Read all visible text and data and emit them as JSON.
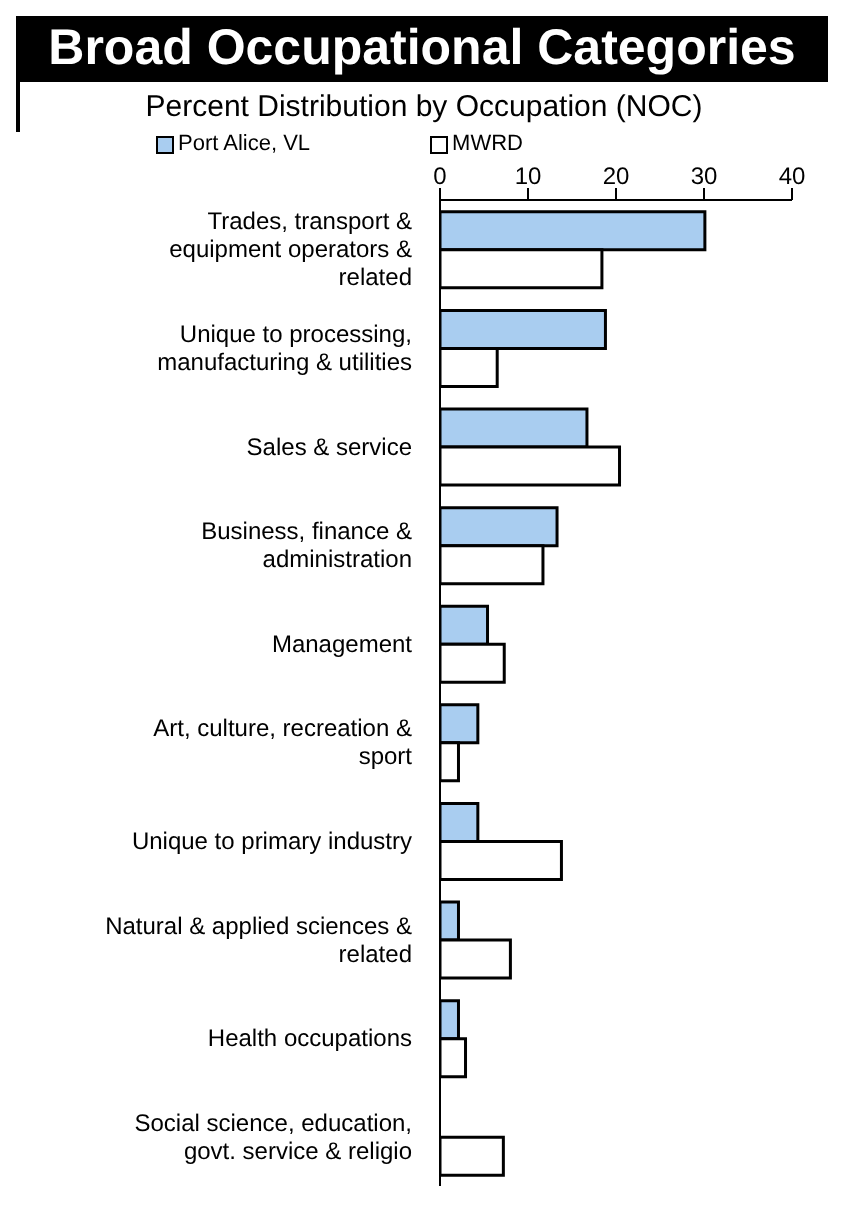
{
  "chart_data": {
    "type": "bar",
    "orientation": "horizontal",
    "title": "Broad Occupational Categories",
    "subtitle": "Percent Distribution by Occupation (NOC)",
    "categories": [
      "Trades, transport & equipment operators & related",
      "Unique to processing, manufacturing & utilities",
      "Sales & service",
      "Business, finance & administration",
      "Management",
      "Art, culture, recreation & sport",
      "Unique to primary industry",
      "Natural & applied sciences & related",
      "Health occupations",
      "Social science, education, govt. service & religio"
    ],
    "series": [
      {
        "name": "Port Alice, VL",
        "color": "#a9cdf0",
        "values": [
          30.1,
          18.8,
          16.7,
          13.3,
          5.4,
          4.3,
          4.3,
          2.1,
          2.1,
          0
        ]
      },
      {
        "name": "MWRD",
        "color": "#ffffff",
        "values": [
          18.4,
          6.5,
          20.4,
          11.7,
          7.3,
          2.1,
          13.8,
          8.0,
          2.9,
          7.2
        ]
      }
    ],
    "xlim": [
      0,
      40
    ],
    "xticks": [
      0,
      10,
      20,
      30,
      40
    ],
    "legend": "top"
  }
}
